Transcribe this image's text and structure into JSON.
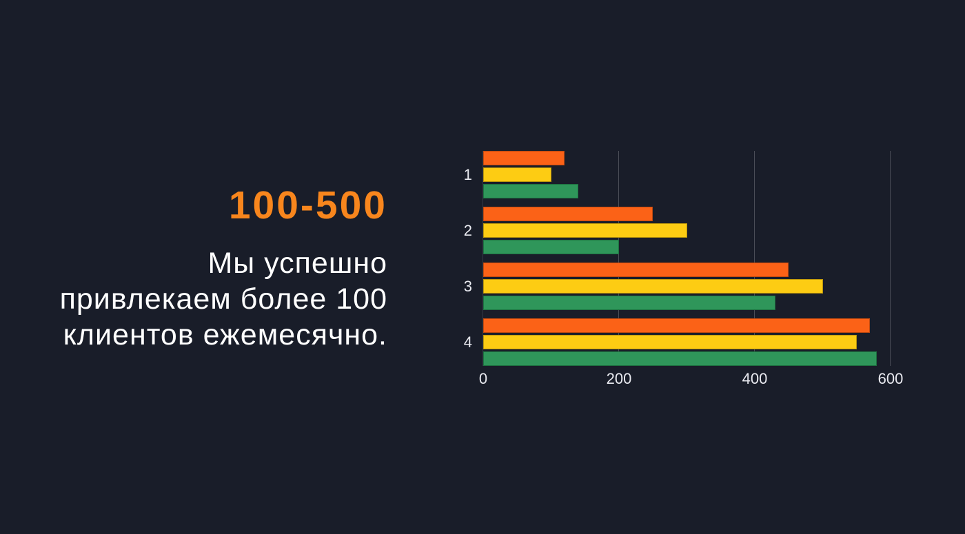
{
  "app": {
    "background_color": "#191D29"
  },
  "left_panel": {
    "headline": "100-500",
    "headline_color": "#F8861D",
    "description_lines": [
      "Мы успешно",
      "привлекаем более 100",
      "клиентов ежемесячно."
    ],
    "text_color": "#FFFFFF"
  },
  "chart_data": {
    "type": "bar",
    "orientation": "horizontal",
    "title": "",
    "xlabel": "",
    "ylabel": "",
    "categories": [
      "1",
      "2",
      "3",
      "4"
    ],
    "series": [
      {
        "name": "orange",
        "color": "#FB6217",
        "border_color": "#C24A0F",
        "values": [
          120,
          250,
          450,
          570
        ]
      },
      {
        "name": "yellow",
        "color": "#FDCC13",
        "border_color": "#BB950C",
        "values": [
          100,
          300,
          500,
          550
        ]
      },
      {
        "name": "green",
        "color": "#2F965A",
        "border_color": "#1E7241",
        "values": [
          140,
          200,
          430,
          580
        ]
      }
    ],
    "xlim": [
      0,
      600
    ],
    "x_ticks": [
      "0",
      "200",
      "400",
      "600"
    ],
    "grid": true,
    "gridline_color": "#4A4D57",
    "axis_line_color": "#343945",
    "tick_label_color": "#E9EAF0",
    "legend": false
  }
}
